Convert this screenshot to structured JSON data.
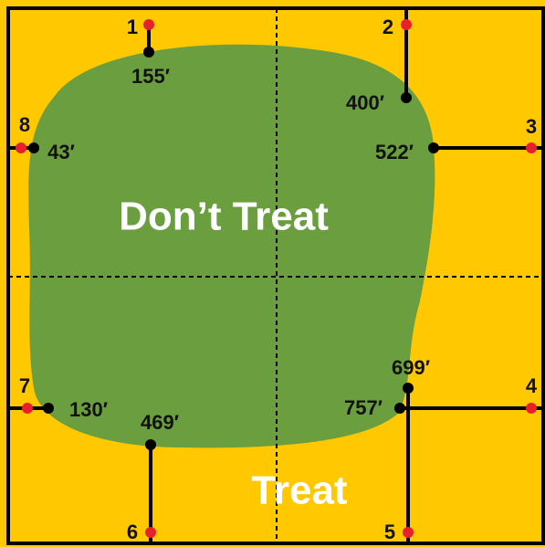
{
  "regions": {
    "inside": "Don’t Treat",
    "outside": "Treat"
  },
  "points": [
    {
      "number": "1",
      "distance": "155′"
    },
    {
      "number": "2",
      "distance": "400′"
    },
    {
      "number": "3",
      "distance": "522′"
    },
    {
      "number": "4",
      "distance": "757′"
    },
    {
      "number": "5",
      "distance": "699′"
    },
    {
      "number": "6",
      "distance": "469′"
    },
    {
      "number": "7",
      "distance": "130′"
    },
    {
      "number": "8",
      "distance": "43′"
    }
  ]
}
